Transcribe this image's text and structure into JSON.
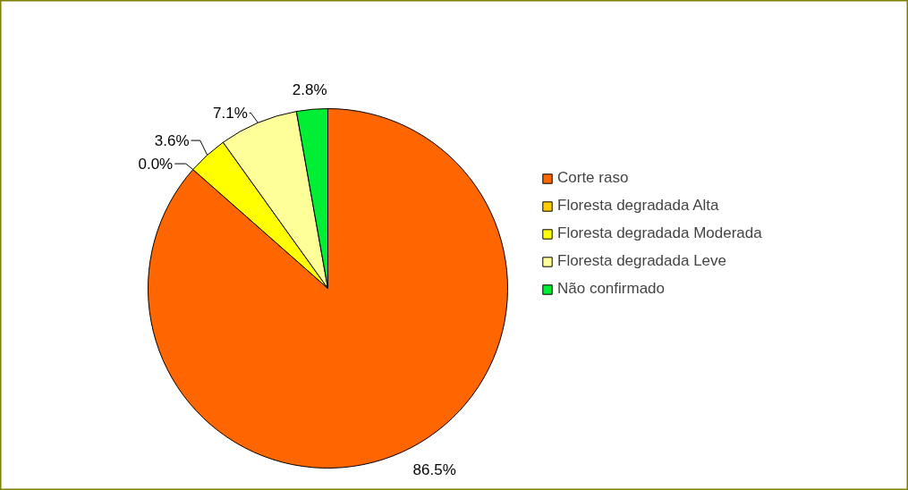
{
  "chart_data": {
    "type": "pie",
    "categories": [
      "Corte raso",
      "Floresta degradada Alta",
      "Floresta degradada Moderada",
      "Floresta degradada Leve",
      "Não confirmado"
    ],
    "values": [
      86.5,
      0.0,
      3.6,
      7.1,
      2.8
    ],
    "colors": [
      "#ff6600",
      "#ffcc00",
      "#ffff00",
      "#ffff99",
      "#00ee33"
    ],
    "value_labels": [
      "86.5%",
      "0.0%",
      "3.6%",
      "7.1%",
      "2.8%"
    ],
    "legend": "right"
  }
}
